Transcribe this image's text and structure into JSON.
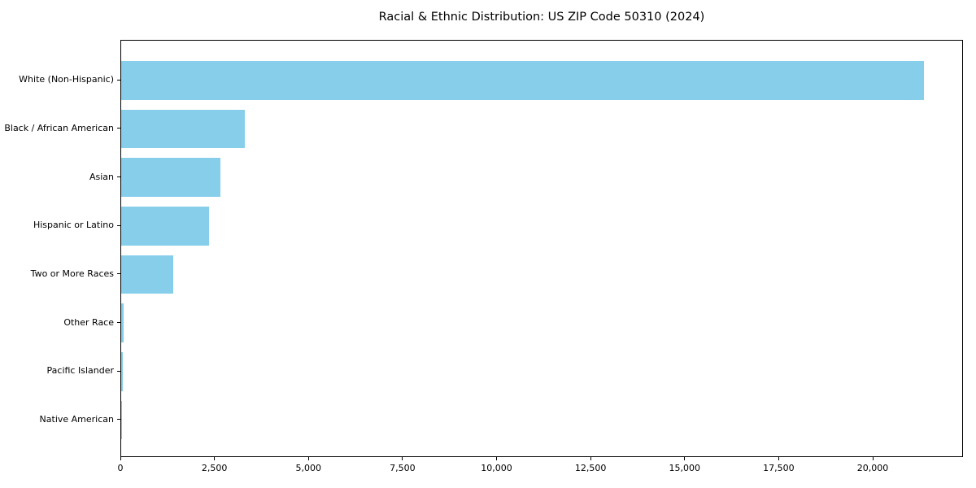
{
  "chart_data": {
    "type": "bar",
    "orientation": "horizontal",
    "title": "Racial & Ethnic Distribution: US ZIP Code 50310 (2024)",
    "categories": [
      "White (Non-Hispanic)",
      "Black / African American",
      "Asian",
      "Hispanic or Latino",
      "Two or More Races",
      "Other Race",
      "Pacific Islander",
      "Native American"
    ],
    "values": [
      21340,
      3290,
      2640,
      2340,
      1390,
      65,
      35,
      10
    ],
    "xlabel": "",
    "ylabel": "",
    "xlim": [
      0,
      22400
    ],
    "x_ticks": [
      {
        "value": 0,
        "label": "0"
      },
      {
        "value": 2500,
        "label": "2,500"
      },
      {
        "value": 5000,
        "label": "5,000"
      },
      {
        "value": 7500,
        "label": "7,500"
      },
      {
        "value": 10000,
        "label": "10,000"
      },
      {
        "value": 12500,
        "label": "12,500"
      },
      {
        "value": 15000,
        "label": "15,000"
      },
      {
        "value": 17500,
        "label": "17,500"
      },
      {
        "value": 20000,
        "label": "20,000"
      }
    ],
    "bar_color": "#87CEEB",
    "axis_color": "#000000",
    "background_color": "#ffffff",
    "grid": false,
    "legend": "none"
  }
}
